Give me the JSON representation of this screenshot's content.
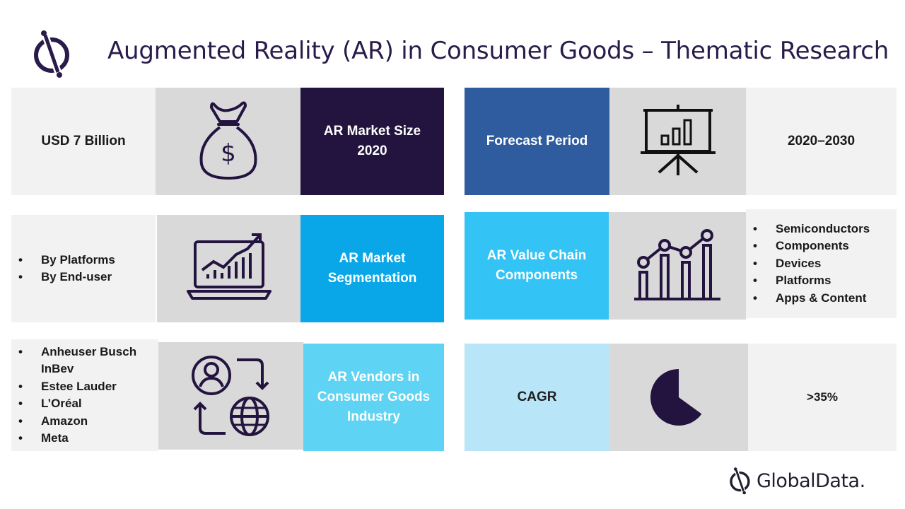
{
  "title": "Augmented Reality (AR) in Consumer Goods – Thematic Research",
  "colors": {
    "dark_purple": "#23143f",
    "navy_blue": "#2f5c9e",
    "bright_blue": "#0aa7e8",
    "sky_blue": "#33c3f5",
    "light_cyan": "#5ed3f3",
    "pale_blue": "#b8e6f8",
    "light_grey": "#f2f2f2",
    "mid_grey": "#d9d9d9"
  },
  "left_rows": [
    {
      "value": "USD 7 Billion",
      "icon": "money-bag-icon",
      "label": "AR Market Size 2020"
    },
    {
      "bullets": [
        "By Platforms",
        "By End-user"
      ],
      "icon": "laptop-growth-chart-icon",
      "label": "AR Market Segmentation"
    },
    {
      "bullets": [
        "Anheuser Busch InBev",
        "Estee Lauder",
        "L’Oréal",
        "Amazon",
        "Meta"
      ],
      "icon": "user-globe-exchange-icon",
      "label": "AR Vendors in Consumer Goods Industry"
    }
  ],
  "right_rows": [
    {
      "label": "Forecast Period",
      "icon": "presentation-board-icon",
      "value": "2020–2030"
    },
    {
      "label": "AR Value Chain Components",
      "icon": "bar-line-chart-icon",
      "bullets": [
        "Semiconductors",
        "Components",
        "Devices",
        "Platforms",
        "Apps & Content"
      ]
    },
    {
      "label": "CAGR",
      "icon": "pie-chart-icon",
      "value": ">35%",
      "pie_fraction": 0.35
    }
  ],
  "footer": {
    "brand": "GlobalData."
  }
}
